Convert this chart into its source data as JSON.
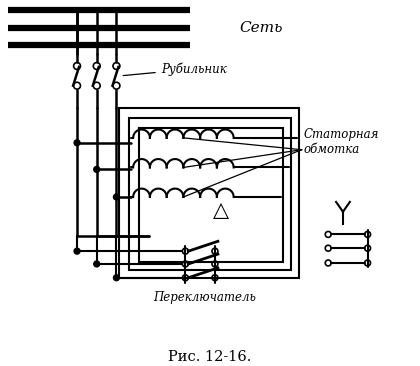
{
  "title": "Рис. 12-16.",
  "label_set": "Сеть",
  "label_rubilnik": "Рубильник",
  "label_stator": "Статорная\nобмотка",
  "label_perekl": "Переключатель",
  "bg_color": "#ffffff",
  "line_color": "#000000",
  "fig_width": 4.2,
  "fig_height": 3.66,
  "dpi": 100
}
